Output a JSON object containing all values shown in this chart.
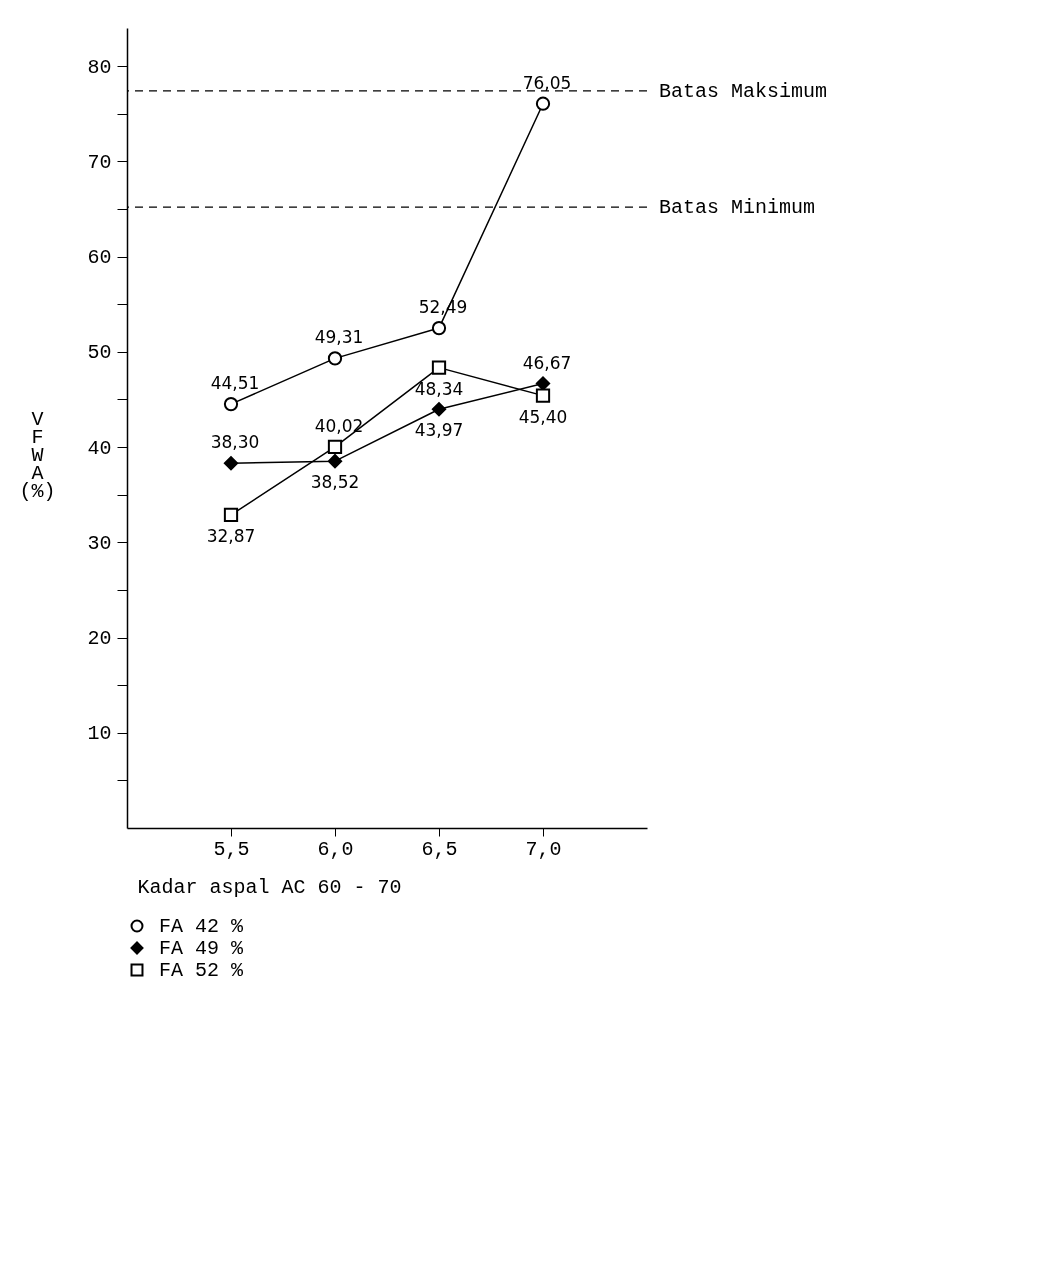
{
  "chart_data": {
    "type": "line",
    "xlabel": "Kadar aspal AC 60 - 70",
    "ylabel": "VFWA (%)",
    "categories": [
      "5,5",
      "6,0",
      "6,5",
      "7,0"
    ],
    "series": [
      {
        "name": "FA 42 %",
        "color": "#000000",
        "marker": "circle",
        "values": [
          44.51,
          49.31,
          52.49,
          76.05
        ],
        "value_labels": [
          "44,51",
          "49,31",
          "52,49",
          "76,05"
        ]
      },
      {
        "name": "FA 49 %",
        "color": "#000000",
        "marker": "diamond",
        "values": [
          38.3,
          38.52,
          43.97,
          46.67
        ],
        "value_labels": [
          "38,30",
          "38,52",
          "43,97",
          "46,67"
        ]
      },
      {
        "name": "FA 52 %",
        "color": "#000000",
        "marker": "square",
        "values": [
          32.87,
          40.02,
          48.34,
          45.4
        ],
        "value_labels": [
          "32,87",
          "40,02",
          "48,34",
          "45,40"
        ]
      }
    ],
    "ylim": [
      0,
      84
    ],
    "yticks": [
      {
        "value": 5,
        "label": null
      },
      10,
      {
        "value": 15,
        "label": null
      },
      20,
      {
        "value": 25,
        "label": null
      },
      30,
      {
        "value": 35,
        "label": null
      },
      40,
      {
        "value": 45,
        "label": null
      },
      50,
      {
        "value": 55,
        "label": null
      },
      60,
      {
        "value": 65,
        "label": null
      },
      70,
      {
        "value": 75,
        "label": null
      },
      80
    ],
    "ref_lines": [
      {
        "axis": "y",
        "value": 77.4,
        "label": "Batas Maksimum",
        "line_style": "dashed"
      },
      {
        "axis": "y",
        "value": 65.2,
        "label": "Batas Minimum",
        "line_style": "dashed"
      }
    ],
    "grid": false,
    "legend": "bottom left",
    "line_style": "solid"
  }
}
